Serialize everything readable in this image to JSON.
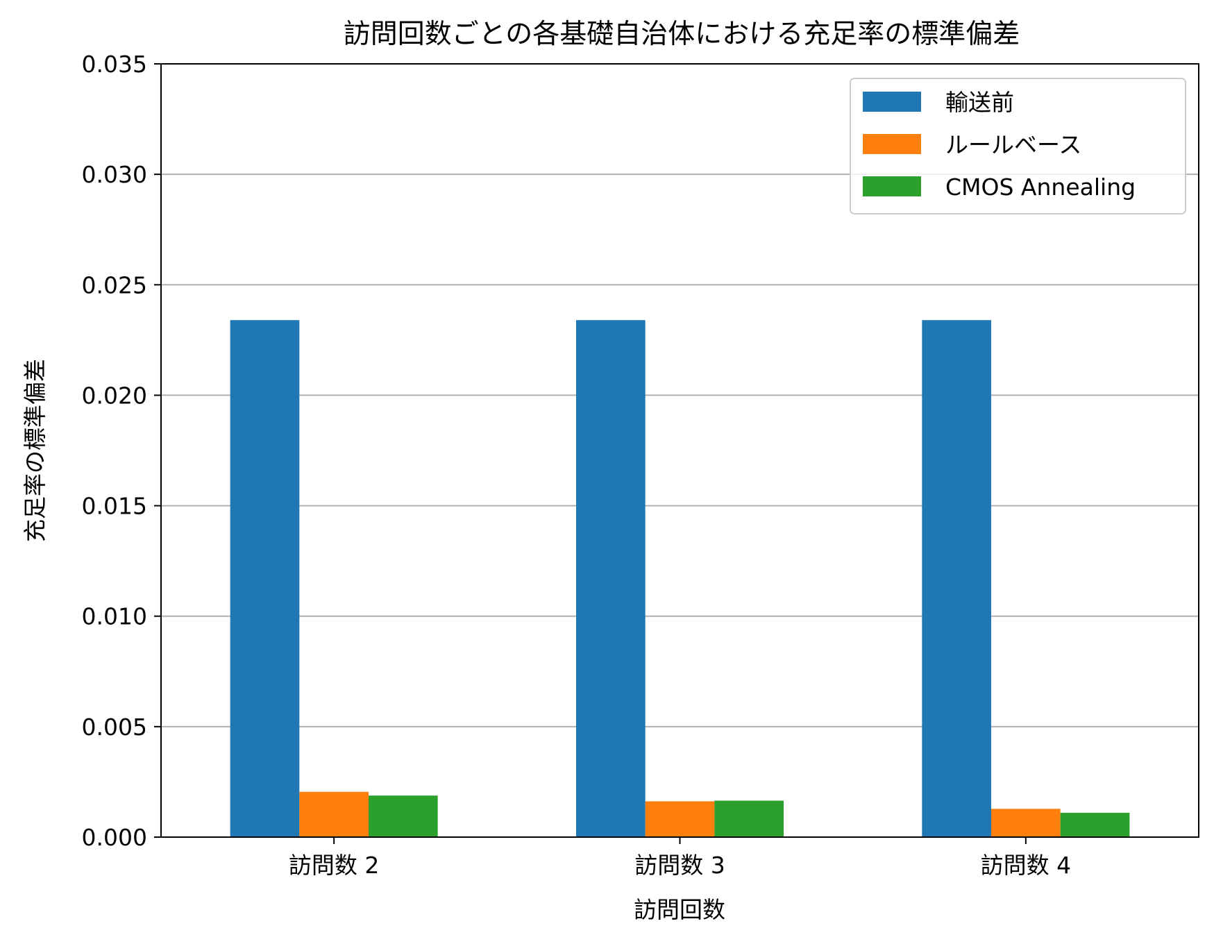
{
  "chart_data": {
    "type": "bar",
    "title": "訪問回数ごとの各基礎自治体における充足率の標準偏差",
    "xlabel": "訪問回数",
    "ylabel": "充足率の標準偏差",
    "categories": [
      "訪問数 2",
      "訪問数 3",
      "訪問数 4"
    ],
    "series": [
      {
        "name": "輸送前",
        "color": "#1f77b4",
        "values": [
          0.0234,
          0.0234,
          0.0234
        ]
      },
      {
        "name": "ルールベース",
        "color": "#ff7f0e",
        "values": [
          0.00205,
          0.00162,
          0.00128
        ]
      },
      {
        "name": "CMOS Annealing",
        "color": "#2ca02c",
        "values": [
          0.00188,
          0.00165,
          0.0011
        ]
      }
    ],
    "ylim": [
      0,
      0.035
    ],
    "yticks": [
      "0.000",
      "0.005",
      "0.010",
      "0.015",
      "0.020",
      "0.025",
      "0.030",
      "0.035"
    ],
    "ytick_values": [
      0,
      0.005,
      0.01,
      0.015,
      0.02,
      0.025,
      0.03,
      0.035
    ],
    "grid": "y",
    "legend_position": "top-right"
  }
}
